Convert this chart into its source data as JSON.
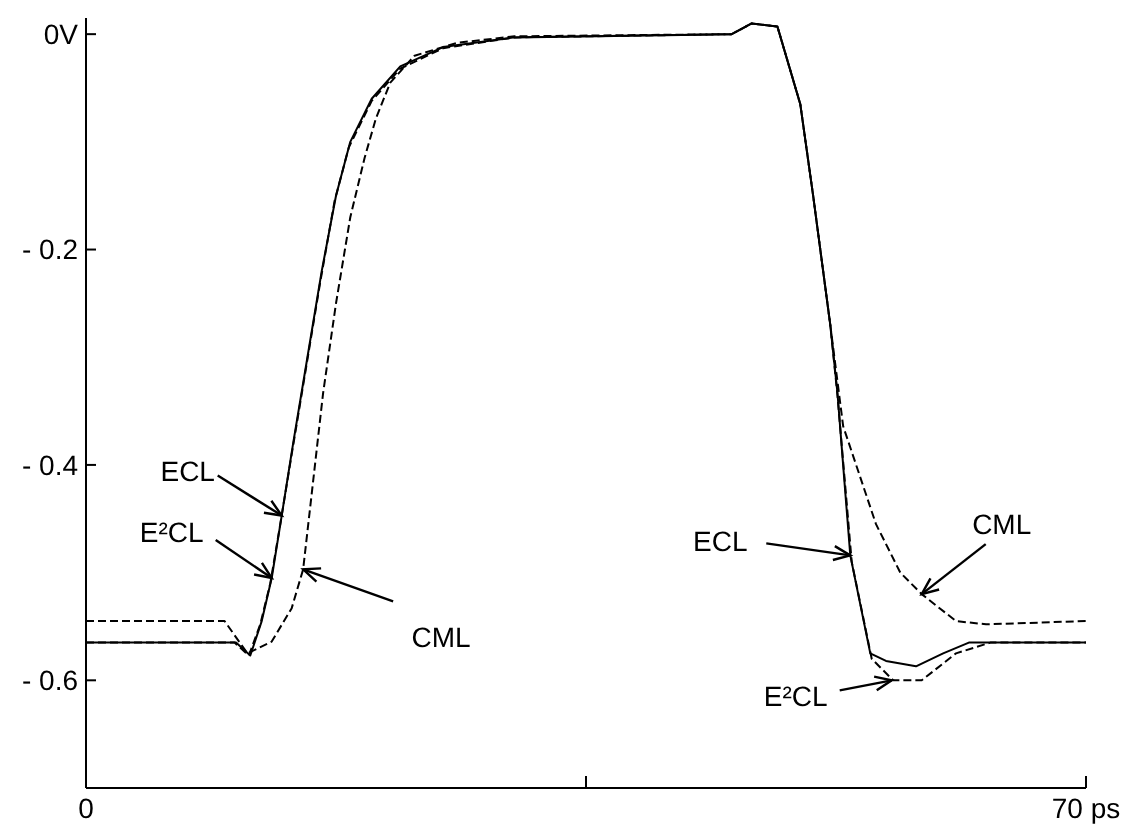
{
  "chart_data": {
    "type": "line",
    "xlim": [
      0,
      70
    ],
    "ylim": [
      -0.7,
      0.015
    ],
    "xticks": [
      0,
      {
        "value": 35,
        "label": null
      },
      {
        "value": 70,
        "label": "70 ps"
      }
    ],
    "yticks": [
      {
        "value": 0,
        "label": "0V"
      },
      {
        "value": -0.2,
        "label": "- 0.2"
      },
      {
        "value": -0.4,
        "label": "- 0.4"
      },
      {
        "value": -0.6,
        "label": "- 0.6"
      }
    ],
    "grid": false,
    "series": [
      {
        "color": "#000000",
        "line_style": "solid",
        "x": [
          0,
          10.5,
          11.5,
          12.3,
          13,
          13.7,
          14.5,
          15.5,
          16.5,
          17.5,
          18.5,
          20,
          22,
          25,
          30,
          45.2,
          46.6,
          48.4,
          50,
          50.9,
          52.1,
          52.6,
          53.5,
          54.9,
          56,
          58.1,
          60,
          61.8,
          64,
          70
        ],
        "values": [
          -0.565,
          -0.565,
          -0.577,
          -0.545,
          -0.505,
          -0.447,
          -0.38,
          -0.3,
          -0.22,
          -0.15,
          -0.1,
          -0.06,
          -0.03,
          -0.012,
          -0.003,
          0,
          0.01,
          0.007,
          -0.065,
          -0.15,
          -0.27,
          -0.333,
          -0.484,
          -0.575,
          -0.582,
          -0.587,
          -0.575,
          -0.565,
          -0.565,
          -0.565
        ]
      },
      {
        "color": "#000000",
        "line_style": "dashed",
        "x": [
          0,
          10.4,
          11.4,
          12.2,
          12.9,
          13.6,
          14.4,
          15.4,
          16.4,
          17.4,
          18.4,
          20,
          22,
          25,
          30,
          45.2,
          46.6,
          48.4,
          50,
          50.9,
          52.1,
          52.6,
          53.6,
          55,
          56.5,
          58.5,
          60.9,
          63.3,
          66,
          70
        ],
        "values": [
          -0.565,
          -0.565,
          -0.577,
          -0.548,
          -0.51,
          -0.455,
          -0.39,
          -0.31,
          -0.23,
          -0.155,
          -0.105,
          -0.062,
          -0.032,
          -0.013,
          -0.003,
          0,
          0.01,
          0.007,
          -0.065,
          -0.15,
          -0.27,
          -0.335,
          -0.49,
          -0.58,
          -0.6,
          -0.6,
          -0.575,
          -0.565,
          -0.565,
          -0.565
        ]
      },
      {
        "color": "#000000",
        "line_style": "dashed",
        "x": [
          0,
          9.7,
          11.3,
          13,
          14.4,
          15.2,
          16.6,
          17.5,
          18.5,
          19.5,
          20.3,
          21.3,
          23,
          26,
          30,
          45.2,
          46.6,
          48.4,
          50,
          50.9,
          52.1,
          53,
          55.3,
          57,
          58.5,
          60.9,
          63,
          70
        ],
        "values": [
          -0.545,
          -0.545,
          -0.575,
          -0.564,
          -0.533,
          -0.497,
          -0.333,
          -0.25,
          -0.17,
          -0.115,
          -0.078,
          -0.045,
          -0.02,
          -0.008,
          -0.002,
          0,
          0.01,
          0.007,
          -0.065,
          -0.15,
          -0.27,
          -0.364,
          -0.455,
          -0.5,
          -0.52,
          -0.545,
          -0.548,
          -0.545
        ]
      }
    ],
    "annotations": [
      {
        "text": "ECL",
        "x": 13.7,
        "y": -0.447
      },
      {
        "text": "E²CL",
        "x": 13,
        "y": -0.505
      },
      {
        "text": "CML",
        "x": 15.2,
        "y": -0.497
      },
      {
        "text": "ECL",
        "x": 53.5,
        "y": -0.484
      },
      {
        "text": "CML",
        "x": 58.5,
        "y": -0.52
      },
      {
        "text": "E²CL",
        "x": 56.4,
        "y": -0.6
      }
    ]
  }
}
